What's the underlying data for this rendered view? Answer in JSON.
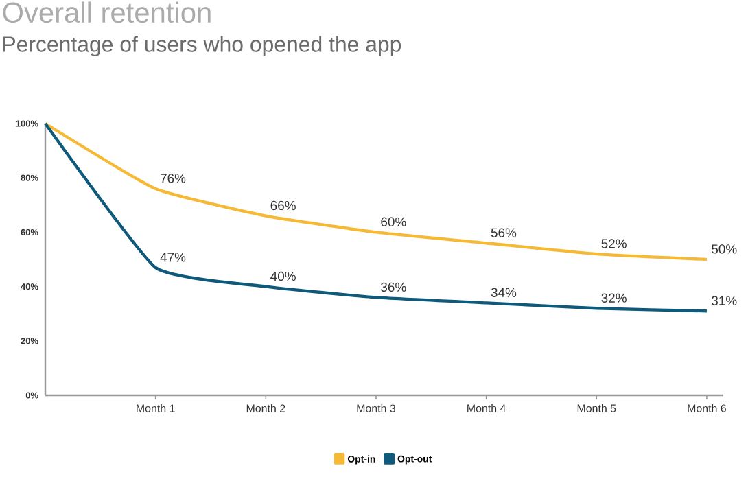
{
  "chart_data": {
    "type": "line",
    "title": "Overall retention",
    "subtitle": "Percentage of users who opened the app",
    "categories": [
      null,
      "Month 1",
      "Month 2",
      "Month 3",
      "Month 4",
      "Month 5",
      "Month 6"
    ],
    "ylim": [
      0,
      100
    ],
    "yticks": [
      {
        "value": 0,
        "label": "0%"
      },
      {
        "value": 20,
        "label": "20%"
      },
      {
        "value": 40,
        "label": "40%"
      },
      {
        "value": 60,
        "label": "60%"
      },
      {
        "value": 80,
        "label": "80%"
      },
      {
        "value": 100,
        "label": "100%"
      }
    ],
    "series": [
      {
        "name": "Opt-in",
        "color": "#f5b935",
        "values": [
          100,
          76,
          66,
          60,
          56,
          52,
          50
        ],
        "value_labels": [
          null,
          "76%",
          "66%",
          "60%",
          "56%",
          "52%",
          "50%"
        ]
      },
      {
        "name": "Opt-out",
        "color": "#0f5a7a",
        "values": [
          100,
          47,
          40,
          36,
          34,
          32,
          31
        ],
        "value_labels": [
          null,
          "47%",
          "40%",
          "36%",
          "34%",
          "32%",
          "31%"
        ]
      }
    ],
    "grid": false,
    "legend": "bottom",
    "marker": "none"
  }
}
